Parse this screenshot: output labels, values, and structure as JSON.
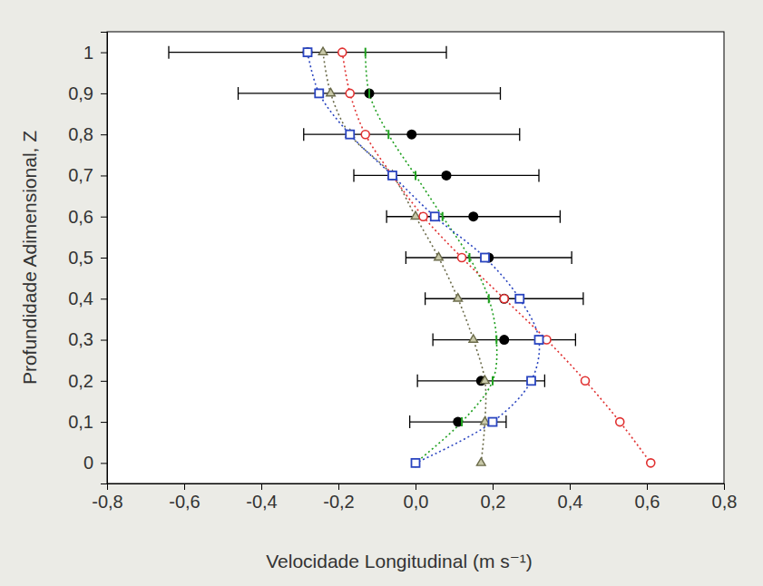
{
  "chart_data": {
    "type": "scatter",
    "x_label": "Velocidade Longitudinal (m s⁻¹)",
    "y_label": "Profundidade Adimensional, Z",
    "xlim": [
      -0.8,
      0.8
    ],
    "ylim": [
      -0.05,
      1.05
    ],
    "xticks": [
      {
        "value": -0.8,
        "label": "-0,8"
      },
      {
        "value": -0.6,
        "label": "-0,6"
      },
      {
        "value": -0.4,
        "label": "-0,4"
      },
      {
        "value": -0.2,
        "label": "-0,2"
      },
      {
        "value": 0,
        "label": "0,0"
      },
      {
        "value": 0.2,
        "label": "0,2"
      },
      {
        "value": 0.4,
        "label": "0,4"
      },
      {
        "value": 0.6,
        "label": "0,6"
      },
      {
        "value": 0.8,
        "label": "0,8"
      }
    ],
    "yticks": [
      0,
      {
        "value": 0.1,
        "label": "0,1"
      },
      {
        "value": 0.2,
        "label": "0,2"
      },
      {
        "value": 0.3,
        "label": "0,3"
      },
      {
        "value": 0.4,
        "label": "0,4"
      },
      {
        "value": 0.5,
        "label": "0,5"
      },
      {
        "value": 0.6,
        "label": "0,6"
      },
      {
        "value": 0.7,
        "label": "0,7"
      },
      {
        "value": 0.8,
        "label": "0,8"
      },
      {
        "value": 0.9,
        "label": "0,9"
      },
      1
    ],
    "grid": false,
    "series": [
      {
        "color": "#000000",
        "marker": "circle",
        "line_style": "none",
        "x": [
          -0.28,
          -0.12,
          -0.01,
          0.08,
          0.15,
          0.19,
          0.23,
          0.23,
          0.17,
          0.11,
          null
        ],
        "values": [
          1,
          0.9,
          0.8,
          0.7,
          0.6,
          0.5,
          0.4,
          0.3,
          0.2,
          0.1,
          0
        ],
        "x_error": [
          0.36,
          0.34,
          0.28,
          0.24,
          0.225,
          0.215,
          0.205,
          0.185,
          0.165,
          0.125,
          null
        ]
      },
      {
        "color": "#6b6b4a",
        "marker": "triangle",
        "line_style": "dotted",
        "x": [
          -0.24,
          -0.22,
          -0.17,
          -0.06,
          0.0,
          0.06,
          0.11,
          0.15,
          0.18,
          0.18,
          0.17
        ],
        "values": [
          1,
          0.9,
          0.8,
          0.7,
          0.6,
          0.5,
          0.4,
          0.3,
          0.2,
          0.1,
          0
        ]
      },
      {
        "color": "#20a020",
        "marker": "vline",
        "line_style": "dotted",
        "x": [
          -0.13,
          -0.12,
          -0.07,
          0.0,
          0.07,
          0.14,
          0.19,
          0.21,
          0.2,
          0.12,
          0.0
        ],
        "values": [
          1,
          0.9,
          0.8,
          0.7,
          0.6,
          0.5,
          0.4,
          0.3,
          0.2,
          0.1,
          0
        ]
      },
      {
        "color": "#e03030",
        "marker": "circle-open",
        "line_style": "dotted",
        "x": [
          -0.19,
          -0.17,
          -0.13,
          -0.06,
          0.02,
          0.12,
          0.23,
          0.34,
          0.44,
          0.53,
          0.61
        ],
        "values": [
          1,
          0.9,
          0.8,
          0.7,
          0.6,
          0.5,
          0.4,
          0.3,
          0.2,
          0.1,
          0
        ]
      },
      {
        "color": "#2a45c0",
        "marker": "square-open",
        "line_style": "dotted",
        "x": [
          -0.28,
          -0.25,
          -0.17,
          -0.06,
          0.05,
          0.18,
          0.27,
          0.32,
          0.3,
          0.2,
          0.0
        ],
        "values": [
          1,
          0.9,
          0.8,
          0.7,
          0.6,
          0.5,
          0.4,
          0.3,
          0.2,
          0.1,
          0
        ]
      }
    ]
  }
}
